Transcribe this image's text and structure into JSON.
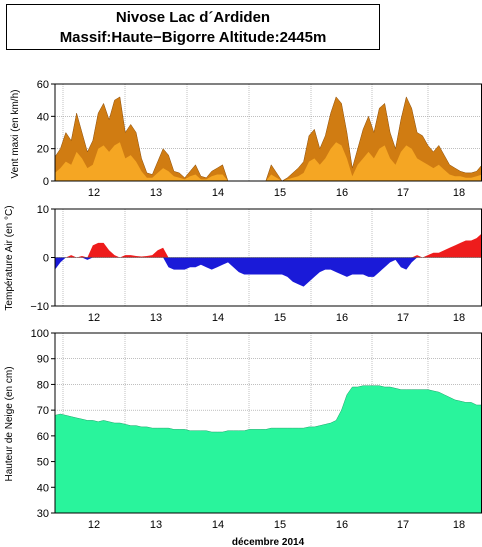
{
  "header": {
    "title_line1": "Nivose Lac d´Ardiden",
    "title_line2": "Massif:Haute−Bigorre Altitude:2445m"
  },
  "chart_data": [
    {
      "type": "area",
      "ylabel": "Vent maxi (en km/h)",
      "ylim": [
        0,
        60
      ],
      "yticks": [
        "0",
        "20",
        "40",
        "60"
      ],
      "grid": true,
      "x_day_labels": [
        "12",
        "13",
        "14",
        "15",
        "16",
        "17",
        "18"
      ],
      "colors": {
        "max": "#d07c12",
        "mean": "#f5a623"
      },
      "series": [
        {
          "values_max": [
            15,
            20,
            30,
            25,
            42,
            30,
            18,
            25,
            42,
            48,
            38,
            50,
            52,
            30,
            35,
            30,
            14,
            5,
            4,
            12,
            20,
            16,
            6,
            5,
            2,
            6,
            10,
            3,
            2,
            6,
            8,
            10,
            0,
            0,
            0,
            0,
            0,
            0,
            0,
            0,
            10,
            5,
            0,
            2,
            5,
            8,
            12,
            28,
            32,
            20,
            28,
            42,
            52,
            48,
            30,
            8,
            20,
            32,
            40,
            30,
            45,
            48,
            30,
            20,
            38,
            52,
            45,
            30,
            28,
            22,
            18,
            22,
            16,
            10,
            8,
            6,
            5,
            5,
            6,
            10
          ],
          "values_mean": [
            5,
            8,
            12,
            10,
            18,
            14,
            8,
            10,
            20,
            22,
            18,
            22,
            24,
            14,
            16,
            12,
            6,
            2,
            2,
            5,
            8,
            6,
            3,
            2,
            1,
            3,
            4,
            1,
            1,
            3,
            4,
            4,
            0,
            0,
            0,
            0,
            0,
            0,
            0,
            0,
            4,
            2,
            0,
            1,
            2,
            3,
            5,
            12,
            14,
            10,
            14,
            20,
            24,
            22,
            14,
            3,
            10,
            14,
            18,
            14,
            20,
            22,
            14,
            10,
            18,
            22,
            20,
            14,
            12,
            10,
            8,
            10,
            7,
            4,
            3,
            3,
            2,
            2,
            3,
            4
          ]
        }
      ]
    },
    {
      "type": "area",
      "ylabel": "Température Air (en °C)",
      "ylim": [
        -10,
        10
      ],
      "yticks": [
        "−10",
        "0",
        "10"
      ],
      "grid": true,
      "x_day_labels": [
        "12",
        "13",
        "14",
        "15",
        "16",
        "17",
        "18"
      ],
      "colors": {
        "positive": "#ee1c1c",
        "negative": "#1a1ad8"
      },
      "series": [
        {
          "values": [
            -2.5,
            -1,
            0,
            0.5,
            0,
            0.3,
            -0.5,
            2.5,
            3,
            3,
            1.5,
            0.5,
            0,
            0.5,
            0.5,
            0.3,
            0.2,
            0.3,
            0.5,
            1.5,
            2,
            -2,
            -2.5,
            -2.5,
            -2.5,
            -2,
            -2,
            -1.5,
            -2,
            -2.5,
            -2,
            -1.5,
            -1,
            -2,
            -3,
            -3.5,
            -3.5,
            -3.5,
            -3.5,
            -3.5,
            -3.5,
            -3.5,
            -3.5,
            -4,
            -5,
            -5.5,
            -6,
            -5,
            -4,
            -3,
            -2.5,
            -2.5,
            -3,
            -3.5,
            -4,
            -3.5,
            -3.5,
            -3.5,
            -4,
            -4,
            -3,
            -2,
            -1,
            -0.5,
            -2,
            -2.5,
            -1,
            0.5,
            0,
            0.5,
            1,
            1,
            1.5,
            2,
            2.5,
            3,
            3.5,
            3.5,
            4,
            5
          ]
        }
      ]
    },
    {
      "type": "area",
      "ylabel": "Hauteur de Neige (en cm)",
      "ylim": [
        30,
        100
      ],
      "yticks": [
        "30",
        "40",
        "50",
        "60",
        "70",
        "80",
        "90",
        "100"
      ],
      "grid": true,
      "x_day_labels": [
        "12",
        "13",
        "14",
        "15",
        "16",
        "17",
        "18"
      ],
      "xlabel": "décembre 2014",
      "colors": {
        "fill": "#29f49c"
      },
      "series": [
        {
          "values": [
            68,
            68.5,
            68,
            67.5,
            67,
            66.5,
            66,
            66,
            65.5,
            66,
            65.5,
            65,
            65,
            64.5,
            64,
            64,
            63.5,
            63.5,
            63,
            63,
            63,
            63,
            62.5,
            62.5,
            62.5,
            62,
            62,
            62,
            62,
            61.5,
            61.5,
            61.5,
            62,
            62,
            62,
            62,
            62.5,
            62.5,
            62.5,
            62.5,
            63,
            63,
            63,
            63,
            63,
            63,
            63,
            63.5,
            63.5,
            64,
            64.5,
            65,
            66,
            70,
            76,
            79,
            79,
            79.5,
            79.5,
            79.5,
            79.5,
            79,
            79,
            78.5,
            78,
            78,
            78,
            78,
            78,
            78,
            77.5,
            77,
            76,
            75,
            74,
            73.5,
            73,
            73,
            72,
            72
          ]
        }
      ]
    }
  ]
}
